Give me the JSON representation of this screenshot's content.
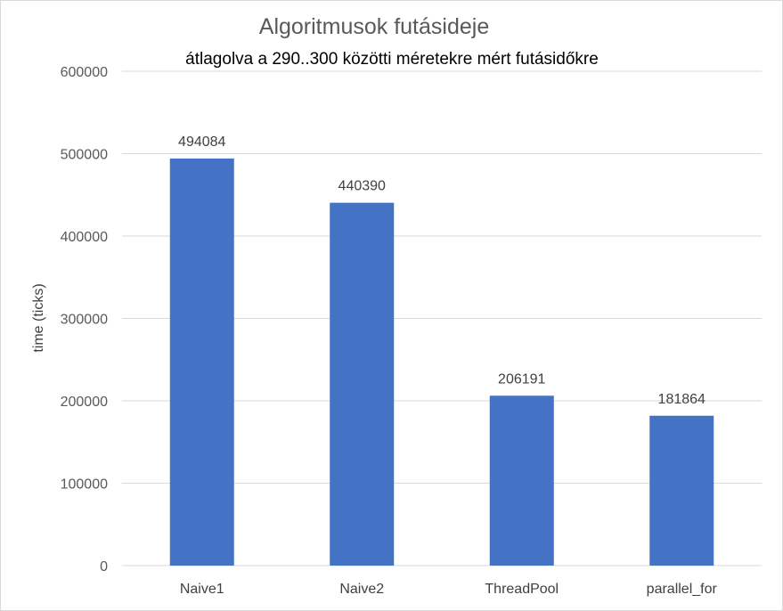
{
  "chart_data": {
    "type": "bar",
    "title": "Algoritmusok futásideje",
    "subtitle": "átlagolva a 290..300 közötti méretekre mért futásidőkre",
    "xlabel": "",
    "ylabel": "time (ticks)",
    "categories": [
      "Naive1",
      "Naive2",
      "ThreadPool",
      "parallel_for"
    ],
    "values": [
      494084,
      440390,
      206191,
      181864
    ],
    "data_labels": [
      "494084",
      "440390",
      "206191",
      "181864"
    ],
    "ylim": [
      0,
      600000
    ],
    "yticks": [
      0,
      100000,
      200000,
      300000,
      400000,
      500000,
      600000
    ],
    "ytick_labels": [
      "0",
      "100000",
      "200000",
      "300000",
      "400000",
      "500000",
      "600000"
    ],
    "grid": true,
    "legend": "none",
    "bar_color": "#4472c4",
    "grid_color": "#d9d9d9"
  }
}
